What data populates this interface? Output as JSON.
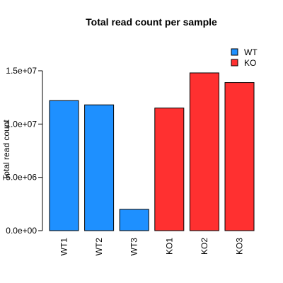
{
  "chart_data": {
    "type": "bar",
    "title": "Total read count per sample",
    "xlabel": "",
    "ylabel": "Total read count",
    "categories": [
      "WT1",
      "WT2",
      "WT3",
      "KO1",
      "KO2",
      "KO3"
    ],
    "values": [
      12200000,
      11800000,
      2000000,
      11500000,
      14800000,
      13900000
    ],
    "groups": [
      "WT",
      "WT",
      "WT",
      "KO",
      "KO",
      "KO"
    ],
    "ylim": [
      0,
      15000000
    ],
    "yticks": [
      0,
      5000000,
      10000000,
      15000000
    ],
    "ytick_labels": [
      "0.0e+00",
      "5.0e+06",
      "1.0e+07",
      "1.5e+07"
    ],
    "legend": {
      "position": "top-right",
      "entries": [
        {
          "name": "WT",
          "color": "#1E90FF"
        },
        {
          "name": "KO",
          "color": "#FF3030"
        }
      ]
    },
    "colors": {
      "WT": "#1E90FF",
      "KO": "#FF3030"
    },
    "grid": false
  }
}
